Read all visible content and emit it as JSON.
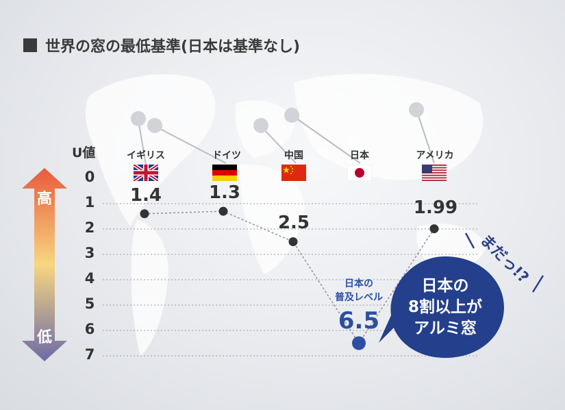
{
  "title": "世界の窓の最低基準(日本は基準なし)",
  "chart_data": {
    "type": "line",
    "ylabel": "U値",
    "ylim": [
      0,
      7
    ],
    "yticks": [
      "0",
      "1",
      "2",
      "3",
      "4",
      "5",
      "6",
      "7"
    ],
    "categories": [
      "イギリス",
      "ドイツ",
      "中国",
      "日本",
      "アメリカ"
    ],
    "points": [
      {
        "country": "イギリス",
        "value": 1.4,
        "label": "1.4"
      },
      {
        "country": "ドイツ",
        "value": 1.3,
        "label": "1.3"
      },
      {
        "country": "中国",
        "value": 2.5,
        "label": "2.5"
      },
      {
        "country": "日本",
        "value": 6.5,
        "label": "6.5"
      },
      {
        "country": "アメリカ",
        "value": 1.99,
        "label": "1.99"
      }
    ],
    "arrow": {
      "top_label": "高",
      "bottom_label": "低"
    },
    "japan_annotation": {
      "line1": "日本の",
      "line2": "普及レベル"
    },
    "bubble": {
      "line1": "日本の",
      "line2": "8割以上が",
      "line3": "アルミ窓"
    },
    "exclaim": "まだっ!?",
    "colors": {
      "accent": "#2c4fa3",
      "bubble": "#243f8c",
      "dot": "#333333",
      "arrow_top": "#e85a3c",
      "arrow_mid": "#f7d680",
      "arrow_bottom": "#6e6aa6"
    }
  }
}
